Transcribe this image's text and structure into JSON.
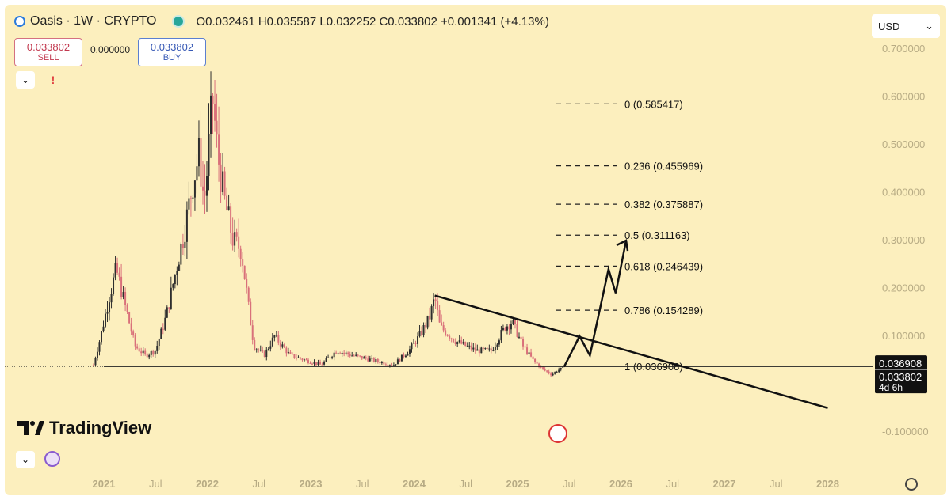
{
  "header": {
    "title": "Oasis · 1W · CRYPTO",
    "ohlc": "O0.032461  H0.035587  L0.032252  C0.033802  +0.001341 (+4.13%)"
  },
  "currency": "USD",
  "trade": {
    "sell_price": "0.033802",
    "sell_label": "SELL",
    "spread": "0.000000",
    "buy_price": "0.033802",
    "buy_label": "BUY"
  },
  "brand": "TradingView",
  "price_badges": {
    "fib_level": "0.036908",
    "last": "0.033802",
    "countdown": "4d 6h"
  },
  "chart_data": {
    "type": "candlestick",
    "ylim": [
      -0.1,
      0.75
    ],
    "y_ticks": [
      "0.700000",
      "0.600000",
      "0.500000",
      "0.400000",
      "0.300000",
      "0.200000",
      "0.100000",
      "-0.100000"
    ],
    "x_ticks": [
      "2021",
      "Jul",
      "2022",
      "Jul",
      "2023",
      "Jul",
      "2024",
      "Jul",
      "2025",
      "Jul",
      "2026",
      "Jul",
      "2027",
      "Jul",
      "2028"
    ],
    "fib_levels": [
      {
        "label": "0 (0.585417)",
        "value": 0.585417
      },
      {
        "label": "0.236 (0.455969)",
        "value": 0.455969
      },
      {
        "label": "0.382 (0.375887)",
        "value": 0.375887
      },
      {
        "label": "0.5 (0.311163)",
        "value": 0.311163
      },
      {
        "label": "0.618 (0.246439)",
        "value": 0.246439
      },
      {
        "label": "0.786 (0.154289)",
        "value": 0.154289
      },
      {
        "label": "1 (0.036908)",
        "value": 0.036908
      }
    ],
    "price_path": [
      [
        2020.9,
        0.04
      ],
      [
        2020.97,
        0.1
      ],
      [
        2021.05,
        0.18
      ],
      [
        2021.12,
        0.24
      ],
      [
        2021.2,
        0.17
      ],
      [
        2021.3,
        0.08
      ],
      [
        2021.4,
        0.06
      ],
      [
        2021.5,
        0.07
      ],
      [
        2021.6,
        0.14
      ],
      [
        2021.7,
        0.24
      ],
      [
        2021.78,
        0.32
      ],
      [
        2021.86,
        0.42
      ],
      [
        2021.92,
        0.48
      ],
      [
        2021.97,
        0.38
      ],
      [
        2022.0,
        0.45
      ],
      [
        2022.05,
        0.6
      ],
      [
        2022.1,
        0.48
      ],
      [
        2022.17,
        0.38
      ],
      [
        2022.25,
        0.3
      ],
      [
        2022.33,
        0.28
      ],
      [
        2022.4,
        0.16
      ],
      [
        2022.45,
        0.08
      ],
      [
        2022.55,
        0.06
      ],
      [
        2022.65,
        0.1
      ],
      [
        2022.8,
        0.06
      ],
      [
        2022.95,
        0.05
      ],
      [
        2023.1,
        0.04
      ],
      [
        2023.25,
        0.07
      ],
      [
        2023.4,
        0.06
      ],
      [
        2023.6,
        0.05
      ],
      [
        2023.8,
        0.04
      ],
      [
        2023.95,
        0.07
      ],
      [
        2024.05,
        0.1
      ],
      [
        2024.15,
        0.14
      ],
      [
        2024.2,
        0.18
      ],
      [
        2024.25,
        0.12
      ],
      [
        2024.4,
        0.09
      ],
      [
        2024.6,
        0.07
      ],
      [
        2024.75,
        0.07
      ],
      [
        2024.88,
        0.12
      ],
      [
        2024.95,
        0.13
      ],
      [
        2025.05,
        0.08
      ],
      [
        2025.15,
        0.05
      ],
      [
        2025.25,
        0.03
      ],
      [
        2025.33,
        0.02
      ],
      [
        2025.4,
        0.03
      ],
      [
        2025.45,
        0.034
      ]
    ],
    "trendline": [
      [
        2024.2,
        0.185
      ],
      [
        2028.0,
        -0.05
      ]
    ],
    "projection": [
      [
        2025.45,
        0.036
      ],
      [
        2025.6,
        0.1
      ],
      [
        2025.7,
        0.06
      ],
      [
        2025.88,
        0.24
      ],
      [
        2025.95,
        0.19
      ],
      [
        2026.05,
        0.3
      ]
    ]
  }
}
